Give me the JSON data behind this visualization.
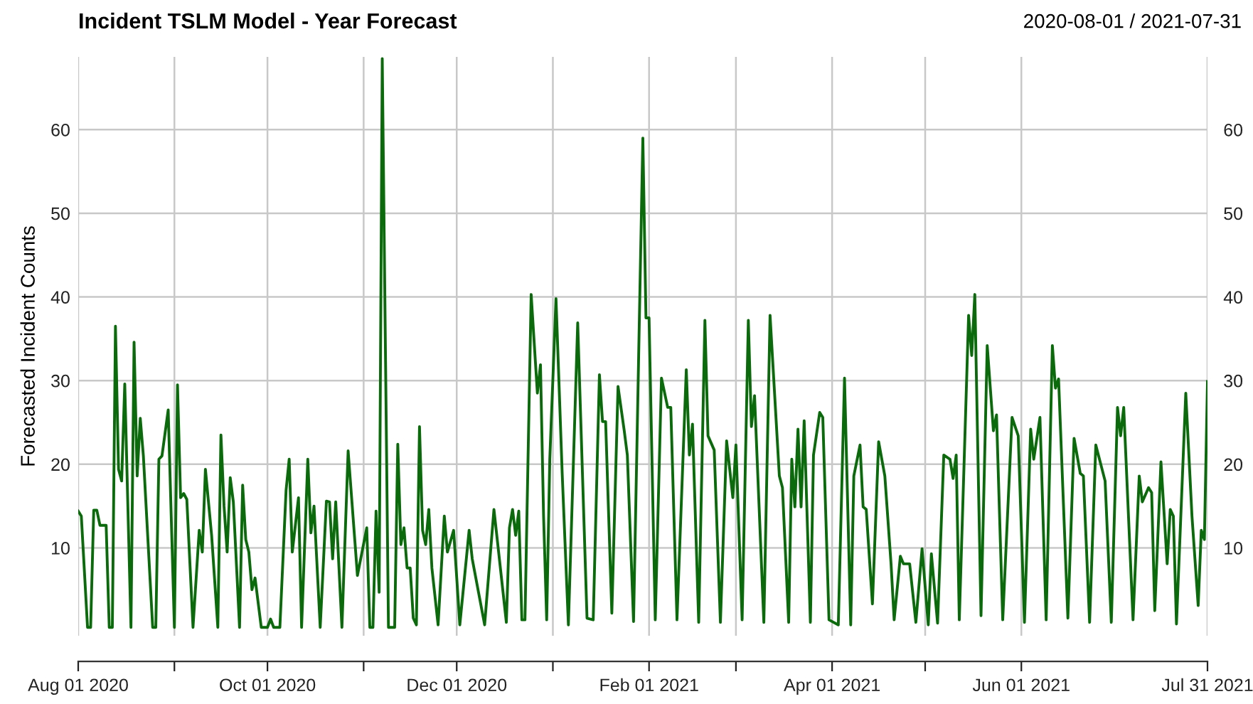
{
  "chart_data": {
    "type": "line",
    "title": "Incident TSLM Model - Year Forecast",
    "subtitle": "2020-08-01 / 2021-07-31",
    "ylabel": "Forecasted Incident Counts",
    "grid": true,
    "legend": false,
    "marker": "none",
    "line_style": "solid",
    "xlim": [
      "2020-08-01",
      "2021-07-31"
    ],
    "xticks": [
      {
        "value": "2020-08-01",
        "label": "Aug 01 2020"
      },
      {
        "value": "2020-09-01",
        "label": null
      },
      {
        "value": "2020-10-01",
        "label": "Oct 01 2020"
      },
      {
        "value": "2020-11-01",
        "label": null
      },
      {
        "value": "2020-12-01",
        "label": "Dec 01 2020"
      },
      {
        "value": "2021-01-01",
        "label": null
      },
      {
        "value": "2021-02-01",
        "label": "Feb 01 2021"
      },
      {
        "value": "2021-03-01",
        "label": null
      },
      {
        "value": "2021-04-01",
        "label": "Apr 01 2021"
      },
      {
        "value": "2021-05-01",
        "label": null
      },
      {
        "value": "2021-06-01",
        "label": "Jun 01 2021"
      },
      {
        "value": "2021-07-31",
        "label": "Jul 31 2021"
      }
    ],
    "ylim": [
      -0.5,
      68.7
    ],
    "yticks": [
      10,
      20,
      30,
      40,
      50,
      60
    ],
    "y2lim": [
      -0.5,
      68.7
    ],
    "y2ticks": [
      10,
      20,
      30,
      40,
      50,
      60
    ],
    "x": [
      "2020-08-01",
      "2020-08-02",
      "2020-08-04",
      "2020-08-05",
      "2020-08-06",
      "2020-08-07",
      "2020-08-08",
      "2020-08-10",
      "2020-08-11",
      "2020-08-12",
      "2020-08-13",
      "2020-08-14",
      "2020-08-15",
      "2020-08-16",
      "2020-08-18",
      "2020-08-19",
      "2020-08-20",
      "2020-08-21",
      "2020-08-22",
      "2020-08-25",
      "2020-08-26",
      "2020-08-27",
      "2020-08-28",
      "2020-08-30",
      "2020-09-01",
      "2020-09-02",
      "2020-09-03",
      "2020-09-04",
      "2020-09-05",
      "2020-09-07",
      "2020-09-09",
      "2020-09-10",
      "2020-09-11",
      "2020-09-13",
      "2020-09-15",
      "2020-09-16",
      "2020-09-17",
      "2020-09-18",
      "2020-09-19",
      "2020-09-20",
      "2020-09-22",
      "2020-09-23",
      "2020-09-24",
      "2020-09-25",
      "2020-09-26",
      "2020-09-27",
      "2020-09-29",
      "2020-10-01",
      "2020-10-02",
      "2020-10-03",
      "2020-10-05",
      "2020-10-07",
      "2020-10-08",
      "2020-10-09",
      "2020-10-11",
      "2020-10-12",
      "2020-10-14",
      "2020-10-15",
      "2020-10-16",
      "2020-10-18",
      "2020-10-20",
      "2020-10-21",
      "2020-10-22",
      "2020-10-23",
      "2020-10-25",
      "2020-10-27",
      "2020-10-30",
      "2020-11-02",
      "2020-11-03",
      "2020-11-04",
      "2020-11-05",
      "2020-11-06",
      "2020-11-07",
      "2020-11-09",
      "2020-11-11",
      "2020-11-12",
      "2020-11-13",
      "2020-11-14",
      "2020-11-15",
      "2020-11-16",
      "2020-11-17",
      "2020-11-18",
      "2020-11-19",
      "2020-11-20",
      "2020-11-21",
      "2020-11-22",
      "2020-11-23",
      "2020-11-25",
      "2020-11-27",
      "2020-11-28",
      "2020-11-30",
      "2020-12-02",
      "2020-12-05",
      "2020-12-06",
      "2020-12-10",
      "2020-12-13",
      "2020-12-17",
      "2020-12-18",
      "2020-12-19",
      "2020-12-20",
      "2020-12-21",
      "2020-12-22",
      "2020-12-23",
      "2020-12-25",
      "2020-12-27",
      "2020-12-28",
      "2020-12-29",
      "2020-12-30",
      "2020-12-31",
      "2021-01-02",
      "2021-01-04",
      "2021-01-06",
      "2021-01-09",
      "2021-01-12",
      "2021-01-14",
      "2021-01-16",
      "2021-01-17",
      "2021-01-18",
      "2021-01-20",
      "2021-01-22",
      "2021-01-24",
      "2021-01-25",
      "2021-01-27",
      "2021-01-30",
      "2021-01-31",
      "2021-02-01",
      "2021-02-03",
      "2021-02-05",
      "2021-02-07",
      "2021-02-08",
      "2021-02-10",
      "2021-02-13",
      "2021-02-14",
      "2021-02-15",
      "2021-02-17",
      "2021-02-19",
      "2021-02-20",
      "2021-02-22",
      "2021-02-24",
      "2021-02-26",
      "2021-02-28",
      "2021-03-01",
      "2021-03-03",
      "2021-03-05",
      "2021-03-06",
      "2021-03-07",
      "2021-03-10",
      "2021-03-12",
      "2021-03-15",
      "2021-03-16",
      "2021-03-18",
      "2021-03-19",
      "2021-03-20",
      "2021-03-21",
      "2021-03-22",
      "2021-03-23",
      "2021-03-25",
      "2021-03-26",
      "2021-03-28",
      "2021-03-29",
      "2021-03-31",
      "2021-04-03",
      "2021-04-05",
      "2021-04-07",
      "2021-04-08",
      "2021-04-10",
      "2021-04-11",
      "2021-04-12",
      "2021-04-14",
      "2021-04-16",
      "2021-04-18",
      "2021-04-20",
      "2021-04-21",
      "2021-04-23",
      "2021-04-24",
      "2021-04-26",
      "2021-04-28",
      "2021-04-30",
      "2021-05-02",
      "2021-05-03",
      "2021-05-05",
      "2021-05-07",
      "2021-05-09",
      "2021-05-10",
      "2021-05-11",
      "2021-05-12",
      "2021-05-15",
      "2021-05-16",
      "2021-05-17",
      "2021-05-19",
      "2021-05-21",
      "2021-05-23",
      "2021-05-24",
      "2021-05-26",
      "2021-05-29",
      "2021-05-31",
      "2021-06-02",
      "2021-06-04",
      "2021-06-05",
      "2021-06-07",
      "2021-06-09",
      "2021-06-11",
      "2021-06-12",
      "2021-06-13",
      "2021-06-16",
      "2021-06-18",
      "2021-06-20",
      "2021-06-21",
      "2021-06-23",
      "2021-06-25",
      "2021-06-28",
      "2021-06-30",
      "2021-07-02",
      "2021-07-03",
      "2021-07-04",
      "2021-07-07",
      "2021-07-09",
      "2021-07-10",
      "2021-07-12",
      "2021-07-13",
      "2021-07-14",
      "2021-07-16",
      "2021-07-18",
      "2021-07-19",
      "2021-07-20",
      "2021-07-21",
      "2021-07-24",
      "2021-07-26",
      "2021-07-28",
      "2021-07-29",
      "2021-07-30",
      "2021-07-31"
    ],
    "series": [
      {
        "color": "#0b6a0b",
        "values": [
          14.4,
          13.8,
          0.5,
          0.5,
          14.5,
          14.5,
          12.7,
          12.7,
          0.5,
          0.5,
          36.5,
          19.4,
          18,
          29.6,
          0.5,
          34.6,
          18.6,
          25.5,
          21,
          0.5,
          0.5,
          20.6,
          21,
          26.5,
          0.5,
          29.5,
          16,
          16.5,
          15.8,
          0.5,
          12.1,
          9.5,
          19.4,
          11.5,
          0.5,
          23.5,
          15,
          9.5,
          18.4,
          15.5,
          0.5,
          17.5,
          11,
          9.5,
          5,
          6.4,
          0.5,
          0.5,
          1.5,
          0.5,
          0.5,
          16.9,
          20.6,
          9.5,
          16,
          0.5,
          20.6,
          11.8,
          15,
          0.5,
          15.6,
          15.5,
          8.7,
          15.5,
          0.5,
          21.6,
          6.7,
          12.4,
          0.5,
          0.5,
          14.4,
          4.7,
          68.5,
          0.5,
          0.5,
          22.4,
          10.4,
          12.4,
          7.6,
          7.6,
          1.6,
          0.8,
          24.5,
          12.1,
          10.4,
          14.6,
          7.6,
          0.8,
          13.8,
          9.5,
          12.1,
          0.8,
          12.1,
          8.7,
          0.8,
          14.6,
          1.1,
          12.4,
          14.6,
          11.5,
          14.4,
          1.4,
          1.4,
          40.3,
          28.5,
          31.9,
          13.8,
          1.4,
          20.6,
          39.8,
          18.9,
          0.8,
          36.9,
          1.6,
          1.4,
          30.7,
          25.1,
          25.1,
          2.2,
          29.3,
          24,
          21.1,
          1.2,
          59,
          37.5,
          37.5,
          1.4,
          30.3,
          26.8,
          26.8,
          1.4,
          31.3,
          21.1,
          24.8,
          1.1,
          37.2,
          23.4,
          21.7,
          1.1,
          22.8,
          16,
          22.3,
          1.4,
          37.2,
          24.5,
          28.2,
          1.1,
          37.8,
          18.6,
          17.2,
          1.1,
          20.6,
          14.9,
          24.2,
          14.9,
          25.2,
          1.1,
          21.1,
          26.2,
          25.6,
          1.4,
          0.8,
          30.3,
          0.8,
          18.6,
          22.3,
          14.9,
          14.6,
          3.3,
          22.7,
          18.6,
          8.1,
          1.4,
          9,
          8.1,
          8.1,
          1.1,
          9.9,
          0.8,
          9.3,
          1,
          21.1,
          20.6,
          18.3,
          21.1,
          1.4,
          37.8,
          33,
          40.3,
          1.9,
          34.2,
          24,
          25.9,
          1.4,
          25.6,
          23.4,
          1.1,
          24.2,
          20.6,
          25.6,
          1.4,
          34.2,
          29.1,
          30.2,
          1.6,
          23.1,
          18.9,
          18.6,
          1.1,
          22.3,
          18,
          1.1,
          26.8,
          23.4,
          26.8,
          1.4,
          18.6,
          15.5,
          17.2,
          16.6,
          2.5,
          20.3,
          8.1,
          14.6,
          13.8,
          0.9,
          28.5,
          13.8,
          3.1,
          12.1,
          11,
          29.9
        ]
      }
    ]
  }
}
